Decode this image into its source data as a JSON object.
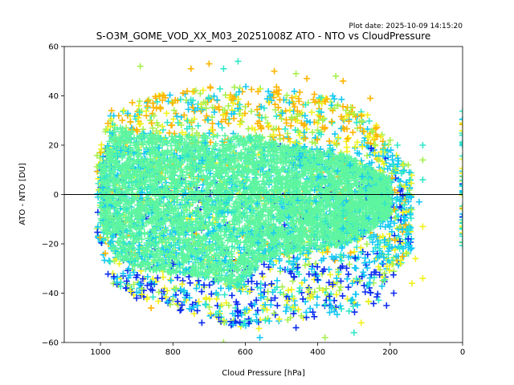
{
  "chart_data": {
    "type": "scatter",
    "title": "S-O3M_GOME_VOD_XX_M03_20251008Z ATO - NTO vs CloudPressure",
    "subtitle": "Plot date: 2025-10-09 14:15:20",
    "xlabel": "Cloud Pressure [hPa]",
    "ylabel": "ATO - NTO [DU]",
    "xlim": [
      1100,
      0
    ],
    "ylim": [
      -60,
      60
    ],
    "xticks": [
      1000,
      800,
      600,
      400,
      200,
      0
    ],
    "yticks": [
      60,
      40,
      20,
      0,
      -20,
      -40,
      -60
    ],
    "xtick_labels": [
      "1000",
      "800",
      "600",
      "400",
      "200",
      "0"
    ],
    "ytick_labels": [
      "60",
      "40",
      "20",
      "0",
      "−20",
      "−40",
      "−60"
    ],
    "reference_line_y": 0,
    "marker": "plus",
    "grid": false,
    "legend": "none",
    "colors": {
      "core": "#5ef5a0",
      "cyan": "#14c8f5",
      "blue": "#0a2cf0",
      "lime": "#a8f050",
      "yellow": "#f2f21e",
      "orange": "#ffb400",
      "teal": "#30e8c8"
    },
    "core_envelope": [
      {
        "x": 1000,
        "ymin": -12,
        "ymax": 12
      },
      {
        "x": 960,
        "ymin": -25,
        "ymax": 28
      },
      {
        "x": 900,
        "ymin": -30,
        "ymax": 25
      },
      {
        "x": 800,
        "ymin": -32,
        "ymax": 24
      },
      {
        "x": 700,
        "ymin": -34,
        "ymax": 24
      },
      {
        "x": 620,
        "ymin": -38,
        "ymax": 24
      },
      {
        "x": 560,
        "ymin": -28,
        "ymax": 24
      },
      {
        "x": 500,
        "ymin": -24,
        "ymax": 20
      },
      {
        "x": 400,
        "ymin": -22,
        "ymax": 18
      },
      {
        "x": 320,
        "ymin": -20,
        "ymax": 16
      },
      {
        "x": 250,
        "ymin": -14,
        "ymax": 10
      },
      {
        "x": 200,
        "ymin": -8,
        "ymax": 6
      }
    ],
    "halo_envelope": [
      {
        "x": 1010,
        "ymin": -20,
        "ymax": 18
      },
      {
        "x": 970,
        "ymin": -36,
        "ymax": 35
      },
      {
        "x": 900,
        "ymin": -42,
        "ymax": 38
      },
      {
        "x": 800,
        "ymin": -46,
        "ymax": 42
      },
      {
        "x": 700,
        "ymin": -50,
        "ymax": 44
      },
      {
        "x": 600,
        "ymin": -56,
        "ymax": 44
      },
      {
        "x": 500,
        "ymin": -52,
        "ymax": 44
      },
      {
        "x": 400,
        "ymin": -50,
        "ymax": 42
      },
      {
        "x": 300,
        "ymin": -48,
        "ymax": 38
      },
      {
        "x": 240,
        "ymin": -45,
        "ymax": 30
      },
      {
        "x": 180,
        "ymin": -30,
        "ymax": 16
      },
      {
        "x": 140,
        "ymin": -22,
        "ymax": 10
      }
    ],
    "edge_column": {
      "x": 0,
      "ymin": -22,
      "ymax": 35
    },
    "outliers": [
      {
        "x": 890,
        "y": 52,
        "c": "lime"
      },
      {
        "x": 750,
        "y": 51,
        "c": "orange"
      },
      {
        "x": 700,
        "y": 53,
        "c": "orange"
      },
      {
        "x": 660,
        "y": 51,
        "c": "teal"
      },
      {
        "x": 620,
        "y": 54,
        "c": "teal"
      },
      {
        "x": 520,
        "y": 50,
        "c": "orange"
      },
      {
        "x": 460,
        "y": 49,
        "c": "lime"
      },
      {
        "x": 430,
        "y": 47,
        "c": "orange"
      },
      {
        "x": 350,
        "y": 48,
        "c": "lime"
      },
      {
        "x": 330,
        "y": 46,
        "c": "orange"
      },
      {
        "x": 255,
        "y": 39,
        "c": "orange"
      },
      {
        "x": 200,
        "y": 22,
        "c": "lime"
      },
      {
        "x": 180,
        "y": 20,
        "c": "teal"
      },
      {
        "x": 150,
        "y": 12,
        "c": "lime"
      },
      {
        "x": 110,
        "y": 20,
        "c": "teal"
      },
      {
        "x": 110,
        "y": 14,
        "c": "lime"
      },
      {
        "x": 110,
        "y": 6,
        "c": "teal"
      },
      {
        "x": 120,
        "y": -3,
        "c": "cyan"
      },
      {
        "x": 110,
        "y": -13,
        "c": "yellow"
      },
      {
        "x": 130,
        "y": -26,
        "c": "yellow"
      },
      {
        "x": 110,
        "y": -34,
        "c": "yellow"
      },
      {
        "x": 140,
        "y": -36,
        "c": "yellow"
      },
      {
        "x": 150,
        "y": -18,
        "c": "blue"
      },
      {
        "x": 190,
        "y": -40,
        "c": "blue"
      },
      {
        "x": 210,
        "y": -45,
        "c": "blue"
      },
      {
        "x": 280,
        "y": -52,
        "c": "yellow"
      },
      {
        "x": 300,
        "y": -56,
        "c": "teal"
      },
      {
        "x": 380,
        "y": -58,
        "c": "lime"
      },
      {
        "x": 460,
        "y": -54,
        "c": "blue"
      },
      {
        "x": 560,
        "y": -58,
        "c": "cyan"
      },
      {
        "x": 660,
        "y": -60,
        "c": "lime"
      },
      {
        "x": 720,
        "y": -52,
        "c": "blue"
      },
      {
        "x": 780,
        "y": -47,
        "c": "blue"
      },
      {
        "x": 860,
        "y": -46,
        "c": "orange"
      },
      {
        "x": 900,
        "y": -42,
        "c": "blue"
      },
      {
        "x": 930,
        "y": -38,
        "c": "blue"
      }
    ]
  }
}
